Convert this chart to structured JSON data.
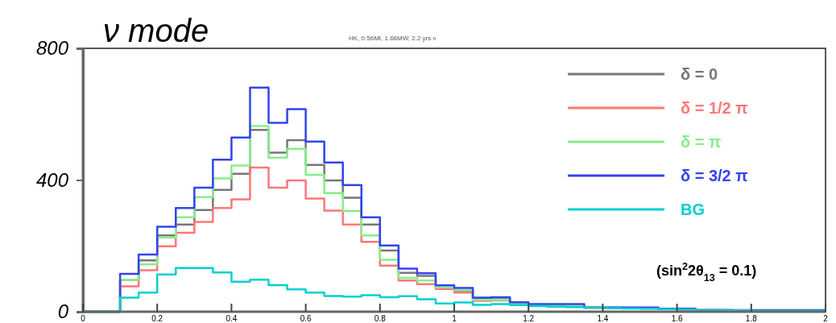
{
  "chart_data": {
    "type": "histogram",
    "title": "ν mode",
    "subtitle": "HK, 0.56Mt, 1.66MW, 2.2 yrs ν",
    "bins": [
      0,
      0.05,
      0.1,
      0.15,
      0.2,
      0.25,
      0.3,
      0.35,
      0.4,
      0.45,
      0.5,
      0.55,
      0.6,
      0.65,
      0.7,
      0.75,
      0.8,
      0.85,
      0.9,
      0.95,
      1,
      1.05,
      1.1,
      1.15,
      1.2,
      1.25,
      1.3,
      1.35,
      1.4,
      1.45,
      1.5,
      1.55,
      1.6,
      1.65,
      1.7,
      1.75,
      1.8,
      1.85,
      1.9,
      1.95,
      2
    ],
    "series": [
      {
        "name": "δ = 0",
        "color": "#777777",
        "values": [
          0,
          0,
          97,
          156,
          232,
          265,
          309,
          370,
          419,
          552,
          483,
          521,
          446,
          399,
          346,
          265,
          186,
          118,
          109,
          72,
          65,
          39,
          38,
          25,
          20,
          19,
          18,
          12,
          12,
          11,
          11,
          8,
          8,
          5,
          5,
          4,
          4,
          4,
          4,
          4
        ]
      },
      {
        "name": "δ = 1/2 π",
        "color": "#ff7777",
        "values": [
          0,
          0,
          77,
          126,
          199,
          240,
          273,
          315,
          341,
          438,
          377,
          399,
          344,
          307,
          265,
          212,
          140,
          95,
          84,
          69,
          58,
          33,
          34,
          22,
          19,
          18,
          17,
          12,
          11,
          11,
          10,
          8,
          7,
          5,
          5,
          4,
          4,
          4,
          4,
          4
        ]
      },
      {
        "name": "δ = π",
        "color": "#88ee88",
        "values": [
          0,
          0,
          97,
          144,
          225,
          287,
          348,
          405,
          444,
          564,
          468,
          495,
          416,
          360,
          306,
          232,
          158,
          103,
          95,
          74,
          66,
          36,
          36,
          23,
          20,
          20,
          19,
          13,
          12,
          12,
          11,
          9,
          8,
          5,
          5,
          4,
          4,
          4,
          4,
          4
        ]
      },
      {
        "name": "δ = 3/2 π",
        "color": "#3344ee",
        "values": [
          0,
          0,
          115,
          174,
          258,
          315,
          377,
          462,
          529,
          681,
          574,
          615,
          517,
          453,
          385,
          287,
          201,
          131,
          117,
          80,
          72,
          43,
          44,
          29,
          23,
          23,
          23,
          13,
          13,
          13,
          13,
          9,
          9,
          5,
          5,
          5,
          5,
          5,
          5,
          5
        ]
      },
      {
        "name": "BG",
        "color": "#00d0d0",
        "values": [
          0,
          0,
          43,
          58,
          113,
          133,
          133,
          119,
          91,
          97,
          81,
          68,
          58,
          48,
          46,
          50,
          44,
          47,
          38,
          25,
          28,
          21,
          23,
          20,
          17,
          15,
          14,
          12,
          11,
          10,
          9,
          8,
          7,
          5,
          4,
          4,
          3,
          3,
          3,
          3
        ]
      }
    ],
    "xlim": [
      0,
      2
    ],
    "xticks": [
      0,
      0.2,
      0.4,
      0.6,
      0.8,
      1,
      1.2,
      1.4,
      1.6,
      1.8,
      2
    ],
    "ylim": [
      0,
      800
    ],
    "yticks": [
      0,
      400,
      800
    ],
    "annotations": [
      "(sin$^{2}$2θ$_{13}$ = 0.1)"
    ],
    "legend": "top right",
    "grid": false
  }
}
